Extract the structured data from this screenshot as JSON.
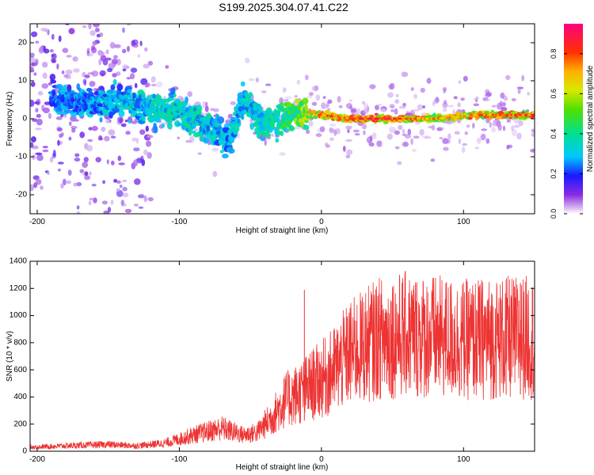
{
  "title": "S199.2025.304.07.41.C22",
  "spectrogram": {
    "type": "heatmap",
    "xlabel": "Height of straight line (km)",
    "ylabel": "Frequency (Hz)",
    "xlim": [
      -205,
      150
    ],
    "ylim": [
      -25,
      25
    ],
    "xticks": [
      -200,
      -100,
      0,
      100
    ],
    "xtick_labels": [
      "-200",
      "-100",
      "0",
      "100"
    ],
    "yticks": [
      -20,
      -10,
      0,
      10,
      20
    ],
    "ytick_labels": [
      "-20",
      "-10",
      "0",
      "10",
      "20"
    ],
    "colorbar": {
      "label": "Normalized spectral amplitude",
      "range": [
        0,
        0.95
      ],
      "ticks": [
        0.0,
        0.2,
        0.4,
        0.6,
        0.8
      ],
      "tick_labels": [
        "0.0",
        "0.2",
        "0.4",
        "0.6",
        "0.8"
      ]
    },
    "ridge": [
      {
        "x": -180,
        "y": 5,
        "amp": 0.3
      },
      {
        "x": -160,
        "y": 4,
        "amp": 0.32
      },
      {
        "x": -140,
        "y": 5,
        "amp": 0.35
      },
      {
        "x": -120,
        "y": 2,
        "amp": 0.4
      },
      {
        "x": -100,
        "y": 2,
        "amp": 0.42
      },
      {
        "x": -80,
        "y": -2,
        "amp": 0.4
      },
      {
        "x": -65,
        "y": -6,
        "amp": 0.35
      },
      {
        "x": -55,
        "y": 5,
        "amp": 0.38
      },
      {
        "x": -40,
        "y": -1,
        "amp": 0.42
      },
      {
        "x": -20,
        "y": 1,
        "amp": 0.55
      },
      {
        "x": 0,
        "y": 1,
        "amp": 0.8
      },
      {
        "x": 20,
        "y": 0,
        "amp": 0.88
      },
      {
        "x": 50,
        "y": 0,
        "amp": 0.9
      },
      {
        "x": 80,
        "y": 0,
        "amp": 0.75
      },
      {
        "x": 110,
        "y": 1,
        "amp": 0.8
      },
      {
        "x": 150,
        "y": 1,
        "amp": 0.85
      }
    ]
  },
  "snr": {
    "type": "line",
    "xlabel": "Height of straight line (km)",
    "ylabel": "SNR (10 * v/v)",
    "xlim": [
      -205,
      150
    ],
    "ylim": [
      0,
      1400
    ],
    "xticks": [
      -200,
      -100,
      0,
      100
    ],
    "xtick_labels": [
      "-200",
      "-100",
      "0",
      "100"
    ],
    "yticks": [
      0,
      200,
      400,
      600,
      800,
      1000,
      1200,
      1400
    ],
    "ytick_labels": [
      "0",
      "200",
      "400",
      "600",
      "800",
      "1000",
      "1200",
      "1400"
    ],
    "series_color": "#ee3333",
    "trend": {
      "x": [
        -205,
        -180,
        -150,
        -130,
        -110,
        -90,
        -70,
        -55,
        -45,
        -35,
        -25,
        -15,
        -5,
        5,
        20,
        40,
        60,
        80,
        100,
        120,
        150
      ],
      "y": [
        30,
        40,
        50,
        40,
        60,
        120,
        170,
        120,
        140,
        250,
        380,
        430,
        500,
        560,
        720,
        830,
        860,
        840,
        820,
        830,
        840
      ]
    },
    "peaks": [
      {
        "x": -12,
        "y": 1190
      },
      {
        "x": 50,
        "y": 1210
      },
      {
        "x": 130,
        "y": 1260
      },
      {
        "x": 140,
        "y": 1240
      }
    ]
  }
}
